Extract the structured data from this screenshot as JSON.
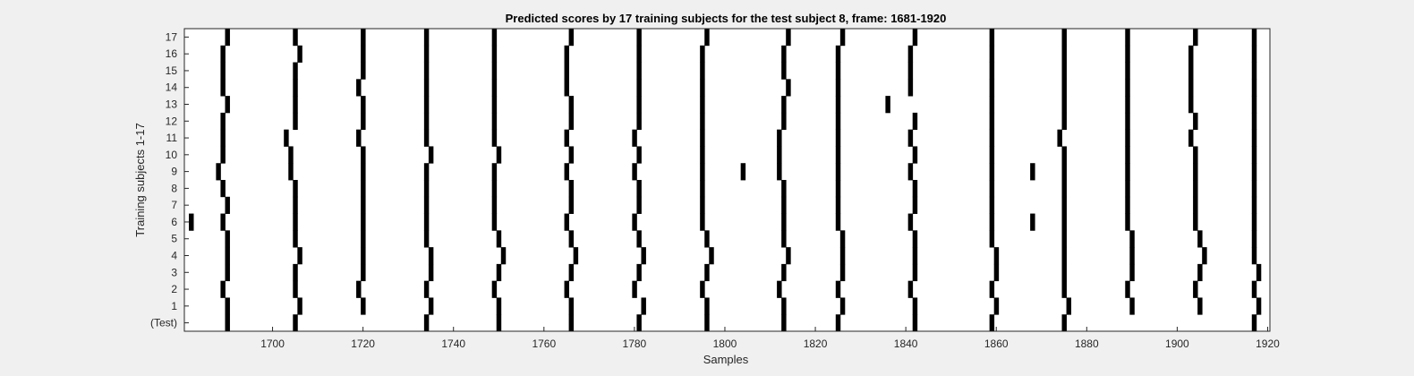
{
  "chart_data": {
    "type": "heatmap",
    "title": "Predicted scores by 17 training subjects for the test subject 8, frame: 1681-1920",
    "xlabel": "Samples",
    "ylabel": "Training subjects 1-17",
    "xlim": [
      1681,
      1920
    ],
    "x_ticks": [
      1700,
      1720,
      1740,
      1760,
      1780,
      1800,
      1820,
      1840,
      1860,
      1880,
      1900,
      1920
    ],
    "y_tick_labels": [
      "(Test)",
      "1",
      "2",
      "3",
      "4",
      "5",
      "6",
      "7",
      "8",
      "9",
      "10",
      "11",
      "12",
      "13",
      "14",
      "15",
      "16",
      "17"
    ],
    "colors": {
      "active": "#000000",
      "inactive": "#ffffff",
      "background": "#f0f0f0"
    },
    "rows": [
      {
        "label": "(Test)",
        "active_samples": [
          1690,
          1705,
          1734,
          1750,
          1766,
          1781,
          1796,
          1813,
          1825,
          1842,
          1859,
          1875,
          1917
        ]
      },
      {
        "label": "1",
        "active_samples": [
          1690,
          1706,
          1720,
          1735,
          1750,
          1766,
          1782,
          1796,
          1813,
          1826,
          1842,
          1860,
          1876,
          1890,
          1905,
          1918
        ]
      },
      {
        "label": "2",
        "active_samples": [
          1689,
          1705,
          1719,
          1734,
          1749,
          1765,
          1780,
          1795,
          1812,
          1825,
          1841,
          1859,
          1875,
          1889,
          1904,
          1917
        ]
      },
      {
        "label": "3",
        "active_samples": [
          1690,
          1705,
          1720,
          1735,
          1750,
          1766,
          1781,
          1796,
          1813,
          1826,
          1842,
          1860,
          1875,
          1890,
          1905,
          1918
        ]
      },
      {
        "label": "4",
        "active_samples": [
          1690,
          1706,
          1720,
          1735,
          1751,
          1767,
          1782,
          1797,
          1814,
          1826,
          1842,
          1860,
          1875,
          1890,
          1906,
          1917
        ]
      },
      {
        "label": "5",
        "active_samples": [
          1690,
          1705,
          1720,
          1734,
          1750,
          1766,
          1781,
          1796,
          1813,
          1826,
          1842,
          1859,
          1875,
          1890,
          1905,
          1917
        ]
      },
      {
        "label": "6",
        "active_samples": [
          1682,
          1689,
          1705,
          1720,
          1734,
          1749,
          1765,
          1780,
          1795,
          1813,
          1825,
          1841,
          1859,
          1868,
          1875,
          1889,
          1904,
          1917
        ]
      },
      {
        "label": "7",
        "active_samples": [
          1690,
          1705,
          1720,
          1734,
          1749,
          1766,
          1781,
          1795,
          1813,
          1825,
          1842,
          1859,
          1875,
          1889,
          1904,
          1917
        ]
      },
      {
        "label": "8",
        "active_samples": [
          1689,
          1705,
          1720,
          1734,
          1749,
          1766,
          1781,
          1795,
          1813,
          1825,
          1842,
          1859,
          1875,
          1889,
          1904,
          1917
        ]
      },
      {
        "label": "9",
        "active_samples": [
          1688,
          1704,
          1720,
          1734,
          1749,
          1765,
          1780,
          1795,
          1804,
          1812,
          1825,
          1841,
          1859,
          1868,
          1875,
          1889,
          1904,
          1917
        ]
      },
      {
        "label": "10",
        "active_samples": [
          1689,
          1704,
          1720,
          1735,
          1750,
          1766,
          1781,
          1795,
          1812,
          1825,
          1842,
          1859,
          1875,
          1889,
          1904,
          1917
        ]
      },
      {
        "label": "11",
        "active_samples": [
          1689,
          1703,
          1719,
          1734,
          1749,
          1765,
          1780,
          1795,
          1812,
          1825,
          1841,
          1859,
          1874,
          1889,
          1903,
          1917
        ]
      },
      {
        "label": "12",
        "active_samples": [
          1689,
          1705,
          1720,
          1734,
          1749,
          1766,
          1781,
          1795,
          1813,
          1825,
          1842,
          1859,
          1875,
          1889,
          1904,
          1917
        ]
      },
      {
        "label": "13",
        "active_samples": [
          1690,
          1705,
          1720,
          1734,
          1749,
          1766,
          1781,
          1795,
          1813,
          1825,
          1836,
          1859,
          1875,
          1889,
          1903,
          1917
        ]
      },
      {
        "label": "14",
        "active_samples": [
          1689,
          1705,
          1719,
          1734,
          1749,
          1765,
          1781,
          1795,
          1814,
          1825,
          1841,
          1859,
          1875,
          1889,
          1903,
          1917
        ]
      },
      {
        "label": "15",
        "active_samples": [
          1689,
          1705,
          1720,
          1734,
          1749,
          1765,
          1781,
          1795,
          1813,
          1825,
          1841,
          1859,
          1875,
          1889,
          1903,
          1917
        ]
      },
      {
        "label": "16",
        "active_samples": [
          1689,
          1706,
          1720,
          1734,
          1749,
          1765,
          1781,
          1795,
          1813,
          1825,
          1841,
          1859,
          1875,
          1889,
          1903,
          1917
        ]
      },
      {
        "label": "17",
        "active_samples": [
          1690,
          1705,
          1720,
          1734,
          1749,
          1766,
          1781,
          1796,
          1814,
          1826,
          1842,
          1859,
          1875,
          1889,
          1904,
          1917
        ]
      }
    ]
  }
}
